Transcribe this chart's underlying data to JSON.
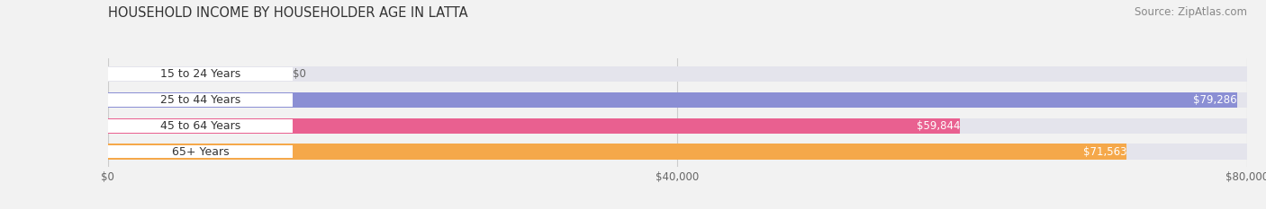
{
  "title": "HOUSEHOLD INCOME BY HOUSEHOLDER AGE IN LATTA",
  "source": "Source: ZipAtlas.com",
  "categories": [
    "15 to 24 Years",
    "25 to 44 Years",
    "45 to 64 Years",
    "65+ Years"
  ],
  "values": [
    0,
    79286,
    59844,
    71563
  ],
  "bar_colors": [
    "#6dcfcf",
    "#8b8fd4",
    "#e96090",
    "#f5a84a"
  ],
  "bar_bg_color": "#e4e4ec",
  "value_labels": [
    "$0",
    "$79,286",
    "$59,844",
    "$71,563"
  ],
  "xlim": [
    0,
    80000
  ],
  "xticks": [
    0,
    40000,
    80000
  ],
  "xtick_labels": [
    "$0",
    "$40,000",
    "$80,000"
  ],
  "title_fontsize": 10.5,
  "source_fontsize": 8.5,
  "label_fontsize": 9,
  "value_fontsize": 8.5,
  "tick_fontsize": 8.5,
  "background_color": "#f2f2f2"
}
